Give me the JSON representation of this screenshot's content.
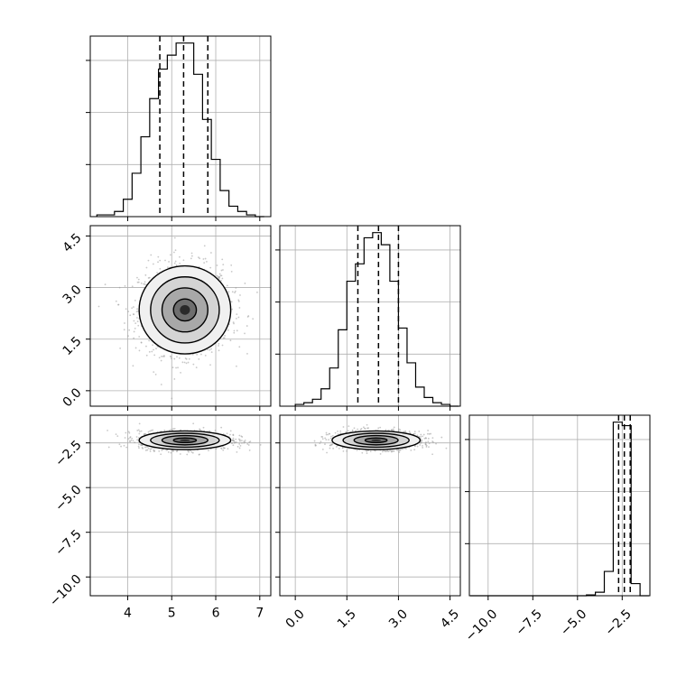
{
  "chart_data": {
    "type": "corner",
    "parameters": [
      {
        "ticks": [
          4,
          5,
          6,
          7
        ],
        "tick_labels": [
          "4",
          "5",
          "6",
          "7"
        ],
        "range": [
          3.15,
          7.25
        ]
      },
      {
        "ticks": [
          0.0,
          1.5,
          3.0,
          4.5
        ],
        "tick_labels": [
          "0.0",
          "1.5",
          "3.0",
          "4.5"
        ],
        "range": [
          -0.45,
          4.8
        ]
      },
      {
        "ticks": [
          -10.0,
          -7.5,
          -5.0,
          -2.5
        ],
        "tick_labels": [
          "−10.0",
          "−7.5",
          "−5.0",
          "−2.5"
        ],
        "range": [
          -11.05,
          -0.95
        ]
      }
    ],
    "grid": true,
    "histograms": [
      {
        "param": 0,
        "bin_edges": [
          3.3,
          3.5,
          3.7,
          3.9,
          4.1,
          4.3,
          4.5,
          4.7,
          4.9,
          5.1,
          5.3,
          5.5,
          5.7,
          5.9,
          6.1,
          6.3,
          6.5,
          6.7,
          6.9,
          7.1
        ],
        "counts": [
          0.01,
          0.01,
          0.03,
          0.1,
          0.25,
          0.46,
          0.68,
          0.85,
          0.93,
          1.0,
          1.0,
          0.82,
          0.56,
          0.33,
          0.15,
          0.06,
          0.03,
          0.01,
          0.0
        ],
        "quantiles": [
          4.73,
          5.27,
          5.82
        ]
      },
      {
        "param": 1,
        "bin_edges": [
          0.0,
          0.25,
          0.5,
          0.75,
          1.0,
          1.25,
          1.5,
          1.75,
          2.0,
          2.25,
          2.5,
          2.75,
          3.0,
          3.25,
          3.5,
          3.75,
          4.0,
          4.25,
          4.5,
          4.75
        ],
        "counts": [
          0.01,
          0.02,
          0.04,
          0.1,
          0.22,
          0.44,
          0.72,
          0.82,
          0.97,
          1.0,
          0.93,
          0.72,
          0.45,
          0.25,
          0.11,
          0.05,
          0.02,
          0.01,
          0.0
        ],
        "quantiles": [
          1.82,
          2.42,
          3.0
        ]
      },
      {
        "param": 2,
        "bin_edges": [
          -11.0,
          -10.5,
          -10.0,
          -9.5,
          -9.0,
          -8.5,
          -8.0,
          -7.5,
          -7.0,
          -6.5,
          -6.0,
          -5.5,
          -5.0,
          -4.5,
          -4.0,
          -3.5,
          -3.0,
          -2.5,
          -2.0,
          -1.5,
          -1.0
        ],
        "counts": [
          0,
          0,
          0,
          0,
          0,
          0,
          0,
          0,
          0,
          0,
          0,
          0,
          0.0,
          0.005,
          0.02,
          0.14,
          1.0,
          0.98,
          0.07,
          0.0
        ],
        "quantiles": [
          -2.7,
          -2.38,
          -2.05
        ]
      }
    ],
    "pairs": [
      {
        "x": 0,
        "y": 1,
        "mean": [
          5.3,
          2.35
        ],
        "sigma": [
          0.52,
          0.64
        ],
        "levels": [
          0.5,
          1.0,
          1.5,
          2.0
        ]
      },
      {
        "x": 0,
        "y": 2,
        "mean": [
          5.3,
          -2.35
        ],
        "sigma": [
          0.52,
          0.26
        ],
        "levels": [
          0.5,
          1.0,
          1.5,
          2.0
        ]
      },
      {
        "x": 1,
        "y": 2,
        "mean": [
          2.35,
          -2.35
        ],
        "sigma": [
          0.64,
          0.26
        ],
        "levels": [
          0.5,
          1.0,
          1.5,
          2.0
        ]
      }
    ]
  }
}
